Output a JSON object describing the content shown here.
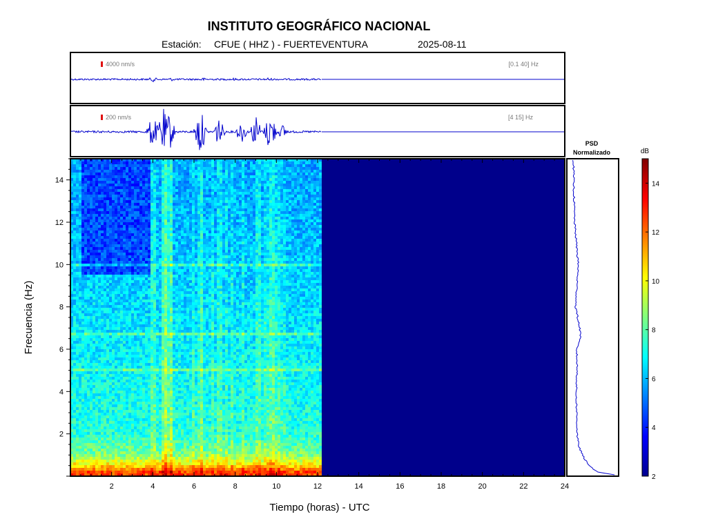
{
  "header": {
    "title": "INSTITUTO GEOGRÁFICO NACIONAL",
    "station_label": "Estación:",
    "station": "CFUE ( HHZ ) - FUERTEVENTURA",
    "date": "2025-08-11"
  },
  "chart_data": [
    {
      "type": "line",
      "panel": "seismogram-broadband",
      "scale_label": "4000 nm/s",
      "band_label": "[0.1 40] Hz",
      "data_end_hour": 12.2,
      "x_range": [
        0,
        24
      ],
      "line_color": "#0000cc",
      "scale_color": "#e01010",
      "events": [
        {
          "t": 4.0,
          "amp": 0.12
        },
        {
          "t": 4.9,
          "amp": 0.08
        },
        {
          "t": 6.4,
          "amp": 0.09
        },
        {
          "t": 7.9,
          "amp": 0.07
        },
        {
          "t": 9.6,
          "amp": 0.09
        }
      ]
    },
    {
      "type": "line",
      "panel": "seismogram-filtered",
      "scale_label": "200 nm/s",
      "band_label": "[4 15] Hz",
      "data_end_hour": 12.2,
      "x_range": [
        0,
        24
      ],
      "line_color": "#0000cc",
      "scale_color": "#e01010",
      "events": [
        {
          "t": 4.0,
          "amp": 0.7
        },
        {
          "t": 4.5,
          "amp": 1.0
        },
        {
          "t": 4.8,
          "amp": 0.8
        },
        {
          "t": 6.3,
          "amp": 1.0
        },
        {
          "t": 7.2,
          "amp": 0.6
        },
        {
          "t": 8.3,
          "amp": 0.5
        },
        {
          "t": 9.0,
          "amp": 0.7
        },
        {
          "t": 9.7,
          "amp": 0.9
        },
        {
          "t": 10.3,
          "amp": 0.3
        }
      ]
    },
    {
      "type": "heatmap",
      "panel": "spectrogram",
      "xlabel": "Tiempo (horas) - UTC",
      "ylabel": "Frecuencia  (Hz)",
      "x_range": [
        0,
        24
      ],
      "y_range": [
        0,
        15
      ],
      "x_ticks": [
        2,
        4,
        6,
        8,
        10,
        12,
        14,
        16,
        18,
        20,
        22,
        24
      ],
      "y_ticks": [
        2,
        4,
        6,
        8,
        10,
        12,
        14
      ],
      "data_end_hour": 12.2,
      "empty_color": "#00008b",
      "bands_hz": [
        {
          "f": 0.2,
          "level_db": 12.5
        },
        {
          "f": 0.5,
          "level_db": 10.5
        },
        {
          "f": 1.0,
          "level_db": 8.5
        },
        {
          "f": 2.0,
          "level_db": 7.3
        },
        {
          "f": 5.0,
          "level_db": 6.9
        },
        {
          "f": 10.0,
          "level_db": 6.2
        },
        {
          "f": 14.0,
          "level_db": 5.8
        }
      ],
      "lines_hz": [
        5.0,
        6.7,
        10.0
      ],
      "quiet_patch": {
        "t0": 0.5,
        "t1": 3.8,
        "f0": 9.5,
        "f1": 15.0,
        "level_db": 4.5
      }
    },
    {
      "type": "line",
      "panel": "psd",
      "title": "PSD\nNormalizado",
      "title_lines": [
        "PSD",
        "Normalizado"
      ],
      "y_range": [
        0,
        15
      ],
      "points": [
        {
          "f": 0.05,
          "v": 0.95
        },
        {
          "f": 0.2,
          "v": 0.6
        },
        {
          "f": 0.5,
          "v": 0.42
        },
        {
          "f": 1.0,
          "v": 0.3
        },
        {
          "f": 1.5,
          "v": 0.22
        },
        {
          "f": 2.0,
          "v": 0.2
        },
        {
          "f": 3.0,
          "v": 0.19
        },
        {
          "f": 4.0,
          "v": 0.18
        },
        {
          "f": 5.0,
          "v": 0.2
        },
        {
          "f": 6.0,
          "v": 0.19
        },
        {
          "f": 6.7,
          "v": 0.27
        },
        {
          "f": 8.0,
          "v": 0.17
        },
        {
          "f": 10.0,
          "v": 0.22
        },
        {
          "f": 12.0,
          "v": 0.15
        },
        {
          "f": 14.0,
          "v": 0.13
        },
        {
          "f": 15.0,
          "v": 0.13
        }
      ]
    },
    {
      "type": "colorbar",
      "panel": "colorbar",
      "label": "dB",
      "range": [
        2,
        15
      ],
      "ticks": [
        2,
        4,
        6,
        8,
        10,
        12,
        14
      ]
    }
  ]
}
